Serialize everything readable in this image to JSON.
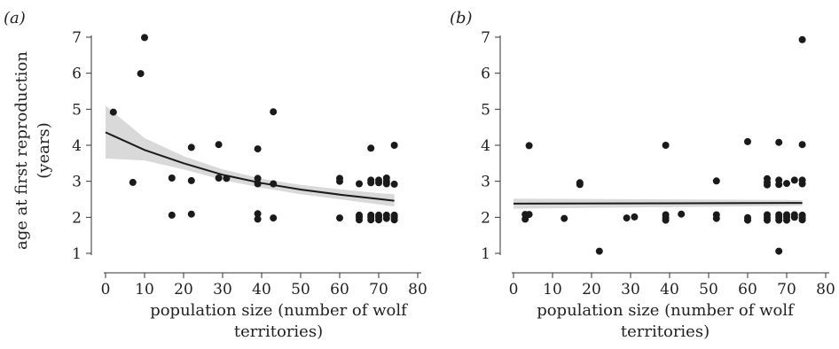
{
  "colors": {
    "point": "#1a1a1a",
    "line": "#1a1a1a",
    "band": "#d9d9d9",
    "axis": "#333333"
  },
  "chart_data": [
    {
      "type": "scatter",
      "panel_label": "(a)",
      "xlabel_line1": "population size (number of wolf",
      "xlabel_line2": "territories)",
      "ylabel_line1": "age at first reproduction",
      "ylabel_line2": "(years)",
      "xlim": [
        0,
        80
      ],
      "ylim": [
        1,
        7
      ],
      "xticks": [
        0,
        10,
        20,
        30,
        40,
        50,
        60,
        70,
        80
      ],
      "yticks": [
        1,
        2,
        3,
        4,
        5,
        6,
        7
      ],
      "points": [
        [
          2,
          4.92
        ],
        [
          7,
          2.97
        ],
        [
          9,
          5.99
        ],
        [
          10,
          6.99
        ],
        [
          17,
          3.09
        ],
        [
          17,
          2.06
        ],
        [
          22,
          3.94
        ],
        [
          22,
          3.02
        ],
        [
          22,
          2.09
        ],
        [
          29,
          4.02
        ],
        [
          29,
          3.09
        ],
        [
          31,
          3.08
        ],
        [
          39,
          3.9
        ],
        [
          39,
          3.08
        ],
        [
          39,
          2.93
        ],
        [
          39,
          2.1
        ],
        [
          39,
          1.95
        ],
        [
          43,
          4.93
        ],
        [
          43,
          2.93
        ],
        [
          43,
          1.98
        ],
        [
          60,
          3.08
        ],
        [
          60,
          3.0
        ],
        [
          60,
          1.98
        ],
        [
          65,
          2.93
        ],
        [
          65,
          2.06
        ],
        [
          65,
          2.0
        ],
        [
          65,
          1.93
        ],
        [
          68,
          3.92
        ],
        [
          68,
          3.03
        ],
        [
          68,
          2.96
        ],
        [
          68,
          2.06
        ],
        [
          68,
          2.0
        ],
        [
          68,
          1.93
        ],
        [
          70,
          3.03
        ],
        [
          70,
          2.96
        ],
        [
          70,
          2.06
        ],
        [
          70,
          2.0
        ],
        [
          70,
          1.93
        ],
        [
          72,
          3.09
        ],
        [
          72,
          3.0
        ],
        [
          72,
          2.93
        ],
        [
          72,
          2.06
        ],
        [
          72,
          1.97
        ],
        [
          74,
          4.0
        ],
        [
          74,
          2.92
        ],
        [
          74,
          2.06
        ],
        [
          74,
          2.0
        ],
        [
          74,
          1.93
        ]
      ],
      "fit": [
        [
          0,
          4.36
        ],
        [
          10,
          3.87
        ],
        [
          20,
          3.5
        ],
        [
          30,
          3.18
        ],
        [
          40,
          2.95
        ],
        [
          50,
          2.77
        ],
        [
          60,
          2.63
        ],
        [
          70,
          2.51
        ],
        [
          74,
          2.46
        ]
      ],
      "band_upper": [
        [
          0,
          5.1
        ],
        [
          10,
          4.2
        ],
        [
          20,
          3.7
        ],
        [
          30,
          3.33
        ],
        [
          40,
          3.07
        ],
        [
          50,
          2.9
        ],
        [
          60,
          2.78
        ],
        [
          70,
          2.67
        ],
        [
          74,
          2.64
        ]
      ],
      "band_lower": [
        [
          0,
          3.63
        ],
        [
          10,
          3.58
        ],
        [
          20,
          3.33
        ],
        [
          30,
          3.04
        ],
        [
          40,
          2.82
        ],
        [
          50,
          2.64
        ],
        [
          60,
          2.5
        ],
        [
          70,
          2.36
        ],
        [
          74,
          2.3
        ]
      ]
    },
    {
      "type": "scatter",
      "panel_label": "(b)",
      "xlabel_line1": "population size (number of wolf",
      "xlabel_line2": "territories)",
      "xlim": [
        0,
        80
      ],
      "ylim": [
        1,
        7
      ],
      "xticks": [
        0,
        10,
        20,
        30,
        40,
        50,
        60,
        70,
        80
      ],
      "yticks": [
        1,
        2,
        3,
        4,
        5,
        6,
        7
      ],
      "points": [
        [
          3,
          2.08
        ],
        [
          3,
          1.95
        ],
        [
          4,
          3.99
        ],
        [
          4,
          2.08
        ],
        [
          13,
          1.97
        ],
        [
          17,
          2.96
        ],
        [
          17,
          2.91
        ],
        [
          22,
          1.06
        ],
        [
          29,
          1.98
        ],
        [
          31,
          2.01
        ],
        [
          39,
          4.0
        ],
        [
          39,
          2.07
        ],
        [
          39,
          1.99
        ],
        [
          39,
          1.92
        ],
        [
          43,
          2.09
        ],
        [
          52,
          3.01
        ],
        [
          52,
          2.07
        ],
        [
          52,
          1.97
        ],
        [
          60,
          4.1
        ],
        [
          60,
          1.99
        ],
        [
          60,
          1.92
        ],
        [
          65,
          3.07
        ],
        [
          65,
          2.97
        ],
        [
          65,
          2.9
        ],
        [
          65,
          2.07
        ],
        [
          65,
          1.99
        ],
        [
          65,
          1.92
        ],
        [
          68,
          4.08
        ],
        [
          68,
          3.03
        ],
        [
          68,
          2.91
        ],
        [
          68,
          2.07
        ],
        [
          68,
          2.0
        ],
        [
          68,
          1.92
        ],
        [
          68,
          1.06
        ],
        [
          70,
          2.94
        ],
        [
          70,
          2.07
        ],
        [
          70,
          2.0
        ],
        [
          70,
          1.92
        ],
        [
          72,
          3.03
        ],
        [
          72,
          2.07
        ],
        [
          72,
          2.0
        ],
        [
          74,
          6.93
        ],
        [
          74,
          4.02
        ],
        [
          74,
          3.03
        ],
        [
          74,
          2.93
        ],
        [
          74,
          2.06
        ],
        [
          74,
          1.99
        ],
        [
          74,
          1.93
        ]
      ],
      "fit": [
        [
          0,
          2.38
        ],
        [
          74,
          2.4
        ]
      ],
      "band_upper": [
        [
          0,
          2.52
        ],
        [
          74,
          2.48
        ]
      ],
      "band_lower": [
        [
          0,
          2.24
        ],
        [
          74,
          2.32
        ]
      ]
    }
  ]
}
